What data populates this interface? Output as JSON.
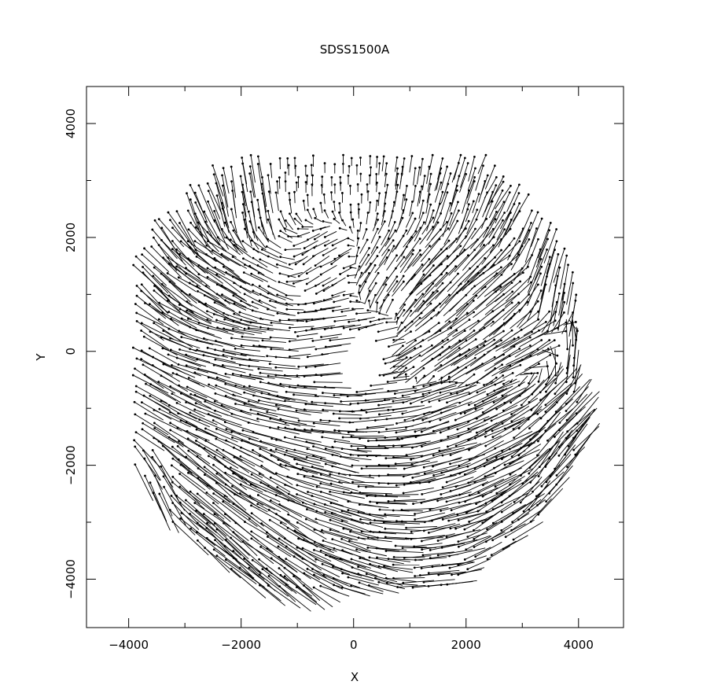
{
  "chart_data": {
    "type": "quiver",
    "title": "SDSS1500A",
    "xlabel": "X",
    "ylabel": "Y",
    "xlim": [
      -4750,
      4800
    ],
    "ylim": [
      -4850,
      4650
    ],
    "xticks": [
      -4000,
      -2000,
      0,
      2000,
      4000
    ],
    "xtick_labels": [
      "−4000",
      "−2000",
      "0",
      "2000",
      "4000"
    ],
    "yticks": [
      -4000,
      -2000,
      0,
      2000,
      4000
    ],
    "ytick_labels": [
      "−4000",
      "−2000",
      "0",
      "2000",
      "4000"
    ],
    "grid": false,
    "legend": "none",
    "color": "#000000",
    "field": {
      "grid_step": 160,
      "radius_min": 500,
      "radius_max": 4300,
      "center": [
        0,
        -150
      ],
      "vectors": [
        {
          "x": -3600,
          "y": 2400,
          "dx": 420,
          "dy": -560
        },
        {
          "x": -3000,
          "y": 3000,
          "dx": 250,
          "dy": -600
        },
        {
          "x": -2000,
          "y": 2900,
          "dx": 80,
          "dy": -500
        },
        {
          "x": -1000,
          "y": 3200,
          "dx": 0,
          "dy": -180
        },
        {
          "x": 0,
          "y": 3200,
          "dx": 0,
          "dy": -150
        },
        {
          "x": 1000,
          "y": 3200,
          "dx": -40,
          "dy": -280
        },
        {
          "x": 2000,
          "y": 3100,
          "dx": -120,
          "dy": -380
        },
        {
          "x": 3000,
          "y": 2800,
          "dx": -260,
          "dy": -480
        },
        {
          "x": 3800,
          "y": 2200,
          "dx": -200,
          "dy": -580
        },
        {
          "x": -3800,
          "y": 1500,
          "dx": 520,
          "dy": -460
        },
        {
          "x": -2800,
          "y": 1400,
          "dx": 500,
          "dy": -300
        },
        {
          "x": -1800,
          "y": 1400,
          "dx": 300,
          "dy": -150
        },
        {
          "x": -700,
          "y": 1500,
          "dx": 250,
          "dy": 150
        },
        {
          "x": 700,
          "y": 1500,
          "dx": -200,
          "dy": -300
        },
        {
          "x": 1800,
          "y": 1500,
          "dx": -400,
          "dy": -400
        },
        {
          "x": 2800,
          "y": 1300,
          "dx": -500,
          "dy": -400
        },
        {
          "x": 3800,
          "y": 1300,
          "dx": -100,
          "dy": -600
        },
        {
          "x": -3800,
          "y": 200,
          "dx": 560,
          "dy": -300
        },
        {
          "x": -2800,
          "y": 100,
          "dx": 500,
          "dy": -130
        },
        {
          "x": -1800,
          "y": 0,
          "dx": 450,
          "dy": -40
        },
        {
          "x": -800,
          "y": 0,
          "dx": 400,
          "dy": 60
        },
        {
          "x": 300,
          "y": 0,
          "dx": 350,
          "dy": 100
        },
        {
          "x": 1300,
          "y": 0,
          "dx": -400,
          "dy": -250
        },
        {
          "x": 2300,
          "y": 0,
          "dx": -480,
          "dy": -320
        },
        {
          "x": 3400,
          "y": 100,
          "dx": -520,
          "dy": -300
        },
        {
          "x": 3900,
          "y": -200,
          "dx": 60,
          "dy": 600
        },
        {
          "x": -3800,
          "y": -1000,
          "dx": 580,
          "dy": -350
        },
        {
          "x": -2800,
          "y": -1000,
          "dx": 560,
          "dy": -230
        },
        {
          "x": -1800,
          "y": -1000,
          "dx": 520,
          "dy": -120
        },
        {
          "x": -800,
          "y": -1000,
          "dx": 500,
          "dy": -40
        },
        {
          "x": 300,
          "y": -1000,
          "dx": 520,
          "dy": 60
        },
        {
          "x": 1300,
          "y": -1000,
          "dx": 540,
          "dy": 180
        },
        {
          "x": 2300,
          "y": -1100,
          "dx": 560,
          "dy": 280
        },
        {
          "x": 3400,
          "y": -1100,
          "dx": 450,
          "dy": 450
        },
        {
          "x": -3800,
          "y": -2200,
          "dx": 300,
          "dy": -650
        },
        {
          "x": -2800,
          "y": -2200,
          "dx": 620,
          "dy": -460
        },
        {
          "x": -1800,
          "y": -2200,
          "dx": 620,
          "dy": -300
        },
        {
          "x": -800,
          "y": -2000,
          "dx": 560,
          "dy": -140
        },
        {
          "x": 300,
          "y": -2000,
          "dx": 560,
          "dy": 0
        },
        {
          "x": 1300,
          "y": -2000,
          "dx": 600,
          "dy": 150
        },
        {
          "x": 2300,
          "y": -2000,
          "dx": 620,
          "dy": 300
        },
        {
          "x": 3400,
          "y": -2200,
          "dx": 450,
          "dy": 550
        },
        {
          "x": -2400,
          "y": -3300,
          "dx": 640,
          "dy": -560
        },
        {
          "x": -1500,
          "y": -3300,
          "dx": 620,
          "dy": -400
        },
        {
          "x": -500,
          "y": -3200,
          "dx": 600,
          "dy": -200
        },
        {
          "x": 500,
          "y": -3200,
          "dx": 600,
          "dy": -30
        },
        {
          "x": 1500,
          "y": -3100,
          "dx": 620,
          "dy": 150
        },
        {
          "x": 2500,
          "y": -3000,
          "dx": 560,
          "dy": 330
        },
        {
          "x": 3300,
          "y": -2900,
          "dx": 400,
          "dy": 450
        },
        {
          "x": -1500,
          "y": -4000,
          "dx": 500,
          "dy": -400
        },
        {
          "x": 0,
          "y": -3900,
          "dx": 500,
          "dy": -150
        },
        {
          "x": 1200,
          "y": -3900,
          "dx": 500,
          "dy": 50
        },
        {
          "x": 2600,
          "y": -3700,
          "dx": 400,
          "dy": 250
        }
      ]
    }
  }
}
